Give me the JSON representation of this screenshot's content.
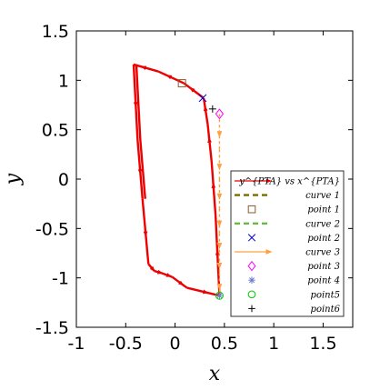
{
  "chart_data": {
    "type": "line",
    "xlabel": "x",
    "ylabel": "y",
    "xlim": [
      -1,
      1.8
    ],
    "ylim": [
      -1.5,
      1.5
    ],
    "xticks": [
      -1,
      -0.5,
      0,
      0.5,
      1,
      1.5
    ],
    "yticks": [
      -1.5,
      -1,
      -0.5,
      0,
      0.5,
      1,
      1.5
    ],
    "xtick_labels": [
      "-1",
      "-0.5",
      "0",
      "0.5",
      "1",
      "1.5"
    ],
    "ytick_labels": [
      "-1.5",
      "-1",
      "-0.5",
      "0",
      "0.5",
      "1",
      "1.5"
    ],
    "grid": false,
    "legend_position": "lower-right",
    "series": [
      {
        "name": "y^{PTA} vs x^{PTA}",
        "kind": "line-arrows",
        "color": "#ee0000",
        "x": [
          0.45,
          0.41,
          0.37,
          0.33,
          0.29,
          0.09,
          -0.17,
          -0.42,
          -0.38,
          -0.33,
          -0.27,
          -0.21,
          -0.14,
          -0.03,
          0.12,
          0.45
        ],
        "y": [
          -1.18,
          -0.36,
          0.18,
          0.56,
          0.82,
          0.97,
          1.09,
          1.16,
          0.4,
          -0.2,
          -0.86,
          -0.93,
          -0.95,
          -0.99,
          -1.1,
          -1.18
        ]
      },
      {
        "name": "curve 1",
        "kind": "dashed-line",
        "color": "#7a6a00",
        "x": [],
        "y": []
      },
      {
        "name": "point 1",
        "kind": "marker",
        "marker": "square",
        "color": "#8b5a2b",
        "x": [
          0.07
        ],
        "y": [
          0.97
        ]
      },
      {
        "name": "curve 2",
        "kind": "dashed-line",
        "color": "#66bb44",
        "x": [],
        "y": []
      },
      {
        "name": "point 2",
        "kind": "marker",
        "marker": "x",
        "color": "#0000cc",
        "x": [
          0.28
        ],
        "y": [
          0.82
        ]
      },
      {
        "name": "curve 3",
        "kind": "dashed-arrows",
        "color": "#ffa040",
        "x": [
          0.45,
          0.45,
          0.45,
          0.45,
          0.45,
          0.45,
          0.45,
          0.45
        ],
        "y": [
          0.66,
          0.3,
          0.0,
          -0.3,
          -0.55,
          -0.75,
          -0.95,
          -1.18
        ]
      },
      {
        "name": "point 3",
        "kind": "marker",
        "marker": "diamond",
        "color": "#ff00ff",
        "x": [
          0.45
        ],
        "y": [
          0.66
        ]
      },
      {
        "name": "point 4",
        "kind": "marker",
        "marker": "asterisk",
        "color": "#6a7fd0",
        "x": [
          0.45
        ],
        "y": [
          -1.18
        ]
      },
      {
        "name": "point5",
        "kind": "marker",
        "marker": "circle",
        "color": "#00cc00",
        "x": [
          0.45
        ],
        "y": [
          -1.18
        ]
      },
      {
        "name": "point6",
        "kind": "marker",
        "marker": "plus",
        "color": "#000000",
        "x": [
          0.38
        ],
        "y": [
          0.71
        ]
      }
    ]
  }
}
